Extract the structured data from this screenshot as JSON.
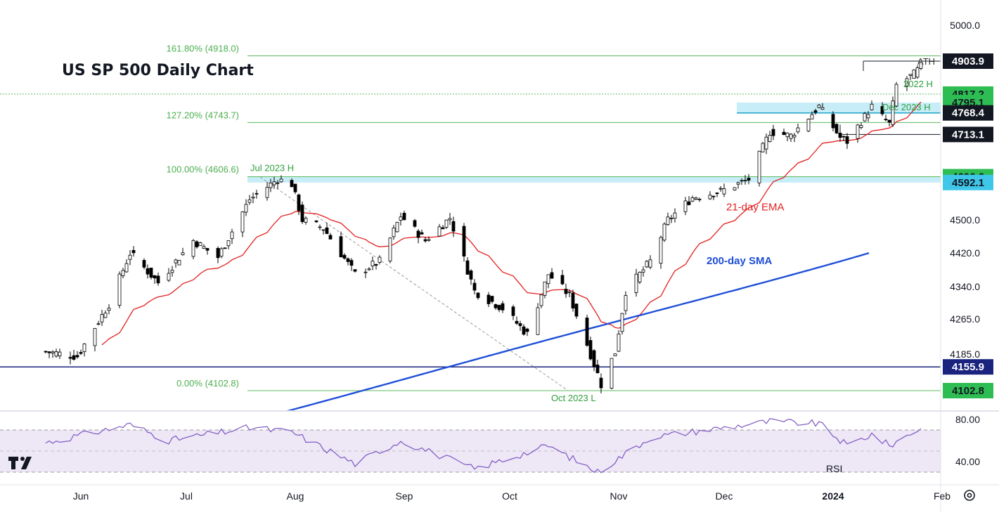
{
  "title": "US SP 500 Daily Chart",
  "colors": {
    "up_candle": "#ffffff",
    "down_candle": "#000000",
    "candle_outline": "#000000",
    "ema": "#e31f1f",
    "sma": "#1f4fd8",
    "fib_line": "#5cb85c",
    "fib_text": "#4caf50",
    "zone": "#bdebf7",
    "support": "#1a237e",
    "rsi_line": "#7e57c2",
    "rsi_band": "#ede7f6"
  },
  "chart_data": {
    "type": "candlestick",
    "title": "US SP 500 Daily Chart",
    "y_axis": {
      "ticks": [
        "5000.0",
        "4500.0",
        "4420.0",
        "4340.0",
        "4265.0",
        "4185.0"
      ],
      "scale": "log"
    },
    "x_axis": {
      "ticks": [
        "Jun",
        "Jul",
        "Aug",
        "Sep",
        "Oct",
        "Nov",
        "Dec",
        "2024",
        "Feb"
      ]
    },
    "price_labels": [
      {
        "text": "4903.9",
        "style": "black"
      },
      {
        "text": "4817.2",
        "style": "green"
      },
      {
        "text": "4795.1",
        "style": "green"
      },
      {
        "text": "4768.4",
        "style": "black"
      },
      {
        "text": "4713.1",
        "style": "black"
      },
      {
        "text": "4606.6",
        "style": "green"
      },
      {
        "text": "4592.1",
        "style": "cyan"
      },
      {
        "text": "4155.9",
        "style": "navy"
      },
      {
        "text": "4102.8",
        "style": "green"
      }
    ],
    "fib_levels": [
      {
        "label": "161.80% (4918.0)",
        "value": 4918.0
      },
      {
        "label": "127.20% (4743.7)",
        "value": 4743.7
      },
      {
        "label": "100.00% (4606.6)",
        "value": 4606.6
      },
      {
        "label": "0.00% (4102.8)",
        "value": 4102.8
      }
    ],
    "annotations": {
      "ath": "ATH",
      "h2022": "2022 H",
      "dec2023": "Dec 2023 H",
      "jul2023": "Jul 2023 H",
      "oct2023": "Oct 2023 L",
      "ema": "21-day EMA",
      "sma": "200-day SMA"
    },
    "horizontal_levels": [
      4903.9,
      4817.2,
      4768.4,
      4713.1,
      4155.9
    ],
    "zones": [
      {
        "from": 4768.4,
        "to": 4795.1
      },
      {
        "from": 4592.1,
        "to": 4606.6
      }
    ],
    "ohlc_anchors": [
      {
        "date": "2023-05-22",
        "close": 4190
      },
      {
        "date": "2023-05-31",
        "close": 4180
      },
      {
        "date": "2023-06-09",
        "close": 4300
      },
      {
        "date": "2023-06-15",
        "close": 4420
      },
      {
        "date": "2023-06-23",
        "close": 4350
      },
      {
        "date": "2023-07-03",
        "close": 4450
      },
      {
        "date": "2023-07-10",
        "close": 4410
      },
      {
        "date": "2023-07-19",
        "close": 4550
      },
      {
        "date": "2023-07-27",
        "close": 4600
      },
      {
        "date": "2023-07-31",
        "close": 4588
      },
      {
        "date": "2023-08-03",
        "close": 4500
      },
      {
        "date": "2023-08-09",
        "close": 4480
      },
      {
        "date": "2023-08-18",
        "close": 4370
      },
      {
        "date": "2023-08-25",
        "close": 4400
      },
      {
        "date": "2023-08-31",
        "close": 4510
      },
      {
        "date": "2023-09-07",
        "close": 4450
      },
      {
        "date": "2023-09-14",
        "close": 4505
      },
      {
        "date": "2023-09-21",
        "close": 4330
      },
      {
        "date": "2023-09-29",
        "close": 4290
      },
      {
        "date": "2023-10-06",
        "close": 4230
      },
      {
        "date": "2023-10-12",
        "close": 4370
      },
      {
        "date": "2023-10-18",
        "close": 4320
      },
      {
        "date": "2023-10-27",
        "close": 4117
      },
      {
        "date": "2023-10-31",
        "close": 4190
      },
      {
        "date": "2023-11-03",
        "close": 4330
      },
      {
        "date": "2023-11-10",
        "close": 4400
      },
      {
        "date": "2023-11-15",
        "close": 4500
      },
      {
        "date": "2023-11-22",
        "close": 4555
      },
      {
        "date": "2023-11-30",
        "close": 4570
      },
      {
        "date": "2023-12-08",
        "close": 4600
      },
      {
        "date": "2023-12-14",
        "close": 4720
      },
      {
        "date": "2023-12-20",
        "close": 4710
      },
      {
        "date": "2023-12-28",
        "close": 4785
      },
      {
        "date": "2024-01-03",
        "close": 4705
      },
      {
        "date": "2024-01-05",
        "close": 4695
      },
      {
        "date": "2024-01-12",
        "close": 4785
      },
      {
        "date": "2024-01-17",
        "close": 4740
      },
      {
        "date": "2024-01-19",
        "close": 4840
      },
      {
        "date": "2024-01-24",
        "close": 4870
      },
      {
        "date": "2024-01-26",
        "close": 4890
      }
    ],
    "ema21_last": 4780,
    "sma200_last": 4420,
    "rsi": {
      "label": "RSI",
      "ticks": [
        "80.00",
        "40.00"
      ],
      "upper": 70,
      "lower": 30,
      "anchors": [
        {
          "date": "2023-05-22",
          "value": 58
        },
        {
          "date": "2023-06-15",
          "value": 75
        },
        {
          "date": "2023-06-26",
          "value": 60
        },
        {
          "date": "2023-07-19",
          "value": 72
        },
        {
          "date": "2023-07-31",
          "value": 68
        },
        {
          "date": "2023-08-18",
          "value": 38
        },
        {
          "date": "2023-08-31",
          "value": 60
        },
        {
          "date": "2023-09-21",
          "value": 33
        },
        {
          "date": "2023-10-12",
          "value": 55
        },
        {
          "date": "2023-10-26",
          "value": 30
        },
        {
          "date": "2023-11-10",
          "value": 63
        },
        {
          "date": "2023-12-14",
          "value": 78
        },
        {
          "date": "2023-12-28",
          "value": 76
        },
        {
          "date": "2024-01-05",
          "value": 55
        },
        {
          "date": "2024-01-12",
          "value": 66
        },
        {
          "date": "2024-01-17",
          "value": 55
        },
        {
          "date": "2024-01-26",
          "value": 72
        }
      ]
    }
  }
}
